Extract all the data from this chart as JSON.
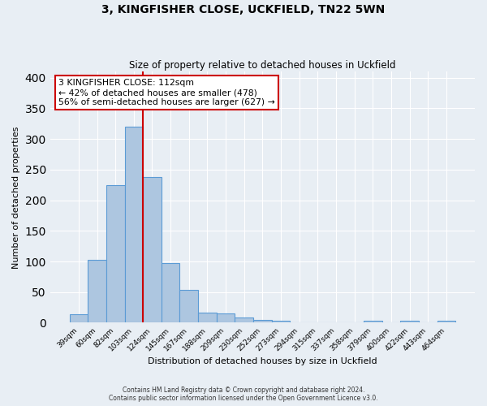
{
  "title": "3, KINGFISHER CLOSE, UCKFIELD, TN22 5WN",
  "subtitle": "Size of property relative to detached houses in Uckfield",
  "xlabel": "Distribution of detached houses by size in Uckfield",
  "ylabel": "Number of detached properties",
  "bin_labels": [
    "39sqm",
    "60sqm",
    "82sqm",
    "103sqm",
    "124sqm",
    "145sqm",
    "167sqm",
    "188sqm",
    "209sqm",
    "230sqm",
    "252sqm",
    "273sqm",
    "294sqm",
    "315sqm",
    "337sqm",
    "358sqm",
    "379sqm",
    "400sqm",
    "422sqm",
    "443sqm",
    "464sqm"
  ],
  "bar_heights": [
    14,
    103,
    225,
    320,
    238,
    97,
    54,
    17,
    15,
    9,
    5,
    3,
    0,
    0,
    0,
    0,
    3,
    0,
    3,
    0,
    3
  ],
  "bar_color": "#adc6e0",
  "bar_edge_color": "#5b9bd5",
  "marker_bin_index": 3,
  "marker_line_color": "#cc0000",
  "annotation_text": "3 KINGFISHER CLOSE: 112sqm\n← 42% of detached houses are smaller (478)\n56% of semi-detached houses are larger (627) →",
  "annotation_box_color": "#ffffff",
  "annotation_box_edge_color": "#cc0000",
  "ylim": [
    0,
    410
  ],
  "yticks": [
    0,
    50,
    100,
    150,
    200,
    250,
    300,
    350,
    400
  ],
  "background_color": "#e8eef4",
  "footer_line1": "Contains HM Land Registry data © Crown copyright and database right 2024.",
  "footer_line2": "Contains public sector information licensed under the Open Government Licence v3.0."
}
